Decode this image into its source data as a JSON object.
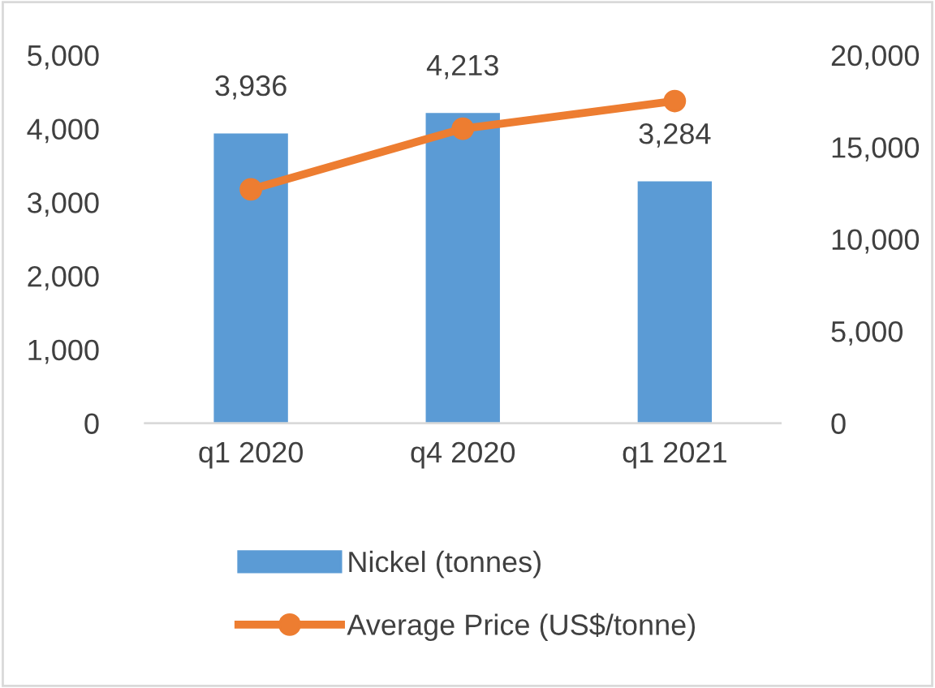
{
  "chart_data": {
    "type": "bar",
    "categories": [
      "q1 2020",
      "q4 2020",
      "q1 2021"
    ],
    "series": [
      {
        "name": "Nickel (tonnes)",
        "color": "#5b9bd5",
        "values": [
          3936,
          4213,
          3284
        ],
        "value_labels": [
          "3,936",
          "4,213",
          "3,284"
        ]
      },
      {
        "name": "Average Price (US$/tonne)",
        "type": "line",
        "axis": "y2",
        "color": "#ed7d31",
        "values": [
          12700,
          16000,
          17500
        ],
        "marker": "circle"
      }
    ],
    "ylim": [
      0,
      5000
    ],
    "yticks": [
      {
        "value": 0,
        "label": "0"
      },
      {
        "value": 1000,
        "label": "1,000"
      },
      {
        "value": 2000,
        "label": "2,000"
      },
      {
        "value": 3000,
        "label": "3,000"
      },
      {
        "value": 4000,
        "label": "4,000"
      },
      {
        "value": 5000,
        "label": "5,000"
      }
    ],
    "y2lim": [
      0,
      20000
    ],
    "y2ticks": [
      {
        "value": 0,
        "label": "0"
      },
      {
        "value": 5000,
        "label": "5,000"
      },
      {
        "value": 10000,
        "label": "10,000"
      },
      {
        "value": 15000,
        "label": "15,000"
      },
      {
        "value": 20000,
        "label": "20,000"
      }
    ],
    "grid": false,
    "legend": "bottom"
  }
}
